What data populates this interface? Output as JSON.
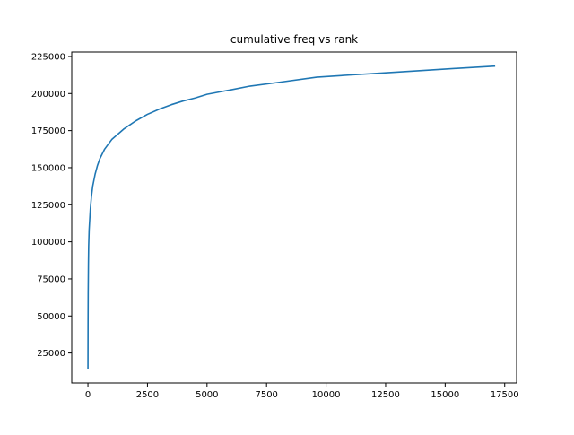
{
  "chart_data": {
    "type": "line",
    "title": "cumulative freq vs rank",
    "xlabel": "",
    "ylabel": "",
    "xlim": [
      -680,
      18000
    ],
    "ylim": [
      4800,
      228000
    ],
    "xticks": [
      0,
      2500,
      5000,
      7500,
      10000,
      12500,
      15000,
      17500
    ],
    "xtick_labels": [
      "0",
      "2500",
      "5000",
      "7500",
      "10000",
      "12500",
      "15000",
      "17500"
    ],
    "yticks": [
      25000,
      50000,
      75000,
      100000,
      125000,
      150000,
      175000,
      200000,
      225000
    ],
    "ytick_labels": [
      "25000",
      "50000",
      "75000",
      "100000",
      "125000",
      "150000",
      "175000",
      "200000",
      "225000"
    ],
    "grid": false,
    "line_color": "#1f77b4",
    "series": [
      {
        "name": "",
        "x": [
          1,
          5,
          10,
          20,
          30,
          50,
          100,
          150,
          200,
          300,
          400,
          500,
          700,
          1000,
          1500,
          2000,
          2500,
          3000,
          3500,
          4000,
          4500,
          5000,
          5500,
          6000,
          6800,
          8000,
          9600,
          11000,
          12500,
          14000,
          15500,
          17100
        ],
        "y": [
          14500,
          45000,
          65000,
          85000,
          97000,
          108000,
          122000,
          131000,
          137500,
          145500,
          151500,
          156000,
          162500,
          169000,
          176000,
          181500,
          186000,
          189500,
          192500,
          195000,
          197000,
          199500,
          201000,
          202500,
          205000,
          207500,
          211000,
          212500,
          214000,
          215500,
          217000,
          218500
        ]
      }
    ]
  }
}
